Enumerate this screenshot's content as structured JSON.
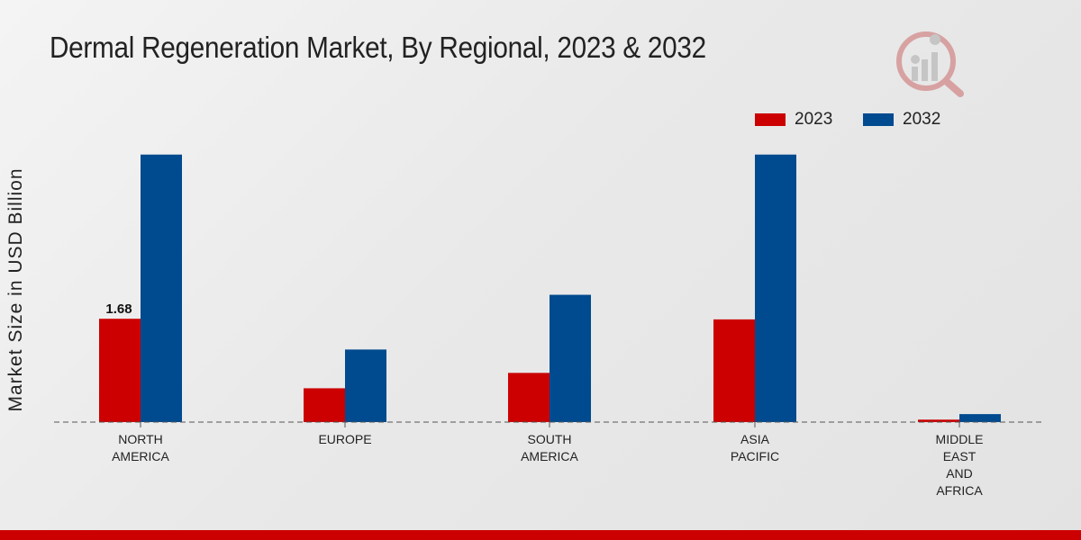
{
  "header": {
    "title": "Dermal Regeneration Market, By Regional, 2023 & 2032"
  },
  "colors": {
    "series_2023": "#cc0000",
    "series_2032": "#004a8f",
    "bottom_bar": "#cc0000",
    "baseline": "#555555"
  },
  "icons": {
    "logo": "watermark-logo-icon"
  },
  "chart_data": {
    "type": "bar",
    "title": "Dermal Regeneration Market, By Regional, 2023 & 2032",
    "xlabel": "",
    "ylabel": "Market Size in USD Billion",
    "ylim": [
      0,
      5.4
    ],
    "grid": false,
    "legend_position": "top-right",
    "categories": [
      [
        "NORTH",
        "AMERICA"
      ],
      [
        "EUROPE"
      ],
      [
        "SOUTH",
        "AMERICA"
      ],
      [
        "ASIA",
        "PACIFIC"
      ],
      [
        "MIDDLE",
        "EAST",
        "AND",
        "AFRICA"
      ]
    ],
    "series": [
      {
        "name": "2023",
        "color": "#cc0000",
        "values": [
          1.68,
          0.55,
          0.8,
          1.67,
          0.04
        ]
      },
      {
        "name": "2032",
        "color": "#004a8f",
        "values": [
          4.35,
          1.18,
          2.07,
          4.35,
          0.13
        ]
      }
    ],
    "data_labels": [
      {
        "series": 0,
        "index": 0,
        "text": "1.68"
      }
    ]
  }
}
